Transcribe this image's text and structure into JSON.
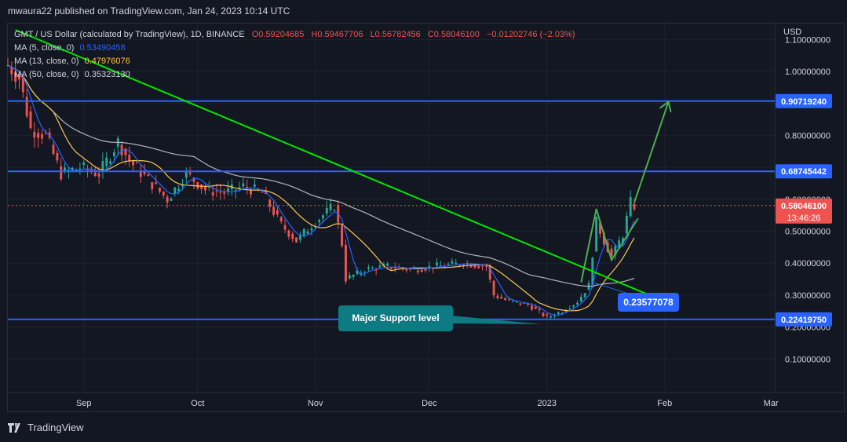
{
  "header": {
    "published_line": "mwaura22 published on TradingView.com, Jan 24, 2023 10:14 UTC"
  },
  "legend": {
    "symbol": "GMT / US Dollar (calculated by TradingView), 1D, BINANCE",
    "o": "O0.59204685",
    "h": "H0.59467706",
    "l": "L0.56782456",
    "c": "C0.58046100",
    "change": "−0.01202746 (−2.03%)",
    "ma5_label": "MA (5, close, 0)",
    "ma5_value": "0.53490458",
    "ma13_label": "MA (13, close, 0)",
    "ma13_value": "0.47976076",
    "ma50_label": "MA (50, close, 0)",
    "ma50_value": "0.35323130"
  },
  "footer": {
    "brand": "TradingView"
  },
  "colors": {
    "background": "#131722",
    "up_candle": "#26a69a",
    "down_candle": "#ef5350",
    "ma5": "#2962ff",
    "ma13": "#f9c74f",
    "ma50": "#b2b5be",
    "trendline": "#00e600",
    "projection": "#4caf50",
    "level_line": "#2962ff",
    "price_badge": "#ef5350",
    "callout": "#0e7a82"
  },
  "chart_data": {
    "type": "candlestick",
    "title": "GMT / US Dollar (calculated by TradingView), 1D, BINANCE",
    "currency_label": "USD",
    "yticks": [
      "0.10000000",
      "0.20000000",
      "0.30000000",
      "0.40000000",
      "0.50000000",
      "0.60000000",
      "0.70000000",
      "0.80000000",
      "0.90000000",
      "1.00000000",
      "1.10000000"
    ],
    "ytick_values": [
      0.1,
      0.2,
      0.3,
      0.4,
      0.5,
      0.6,
      0.7,
      0.8,
      0.9,
      1.0,
      1.1
    ],
    "ylim": [
      0.0,
      1.15
    ],
    "xticks": [
      "Sep",
      "Oct",
      "Nov",
      "Dec",
      "2023",
      "Feb",
      "Mar"
    ],
    "xtick_dates": [
      "2022-09-01",
      "2022-10-01",
      "2022-11-01",
      "2022-12-01",
      "2023-01-01",
      "2023-02-01",
      "2023-03-01"
    ],
    "xlim": [
      "2022-08-12",
      "2023-03-02"
    ],
    "last_price": 0.580461,
    "last_price_label": "0.58046100",
    "countdown": "13:46:26",
    "levels": [
      {
        "value": 0.9071924,
        "label": "0.90719240"
      },
      {
        "value": 0.68745442,
        "label": "0.68745442"
      },
      {
        "value": 0.2241975,
        "label": "0.22419750"
      }
    ],
    "annotations": [
      {
        "text": "Major Support level"
      },
      {
        "text": "0.23577078",
        "value": 0.23577078
      }
    ],
    "trendline": {
      "from": [
        "2022-08-14",
        1.13
      ],
      "to": [
        "2023-01-28",
        0.3
      ]
    },
    "ma50_line": {
      "from": [
        "2022-08-12",
        0.95
      ],
      "mid": [
        "2023-01-20",
        0.34
      ],
      "to": [
        "2023-01-24",
        0.3532313
      ]
    },
    "closes_sample": [
      [
        "2022-08-12",
        1.02
      ],
      [
        "2022-08-15",
        0.98
      ],
      [
        "2022-08-18",
        0.82
      ],
      [
        "2022-08-22",
        0.8
      ],
      [
        "2022-08-26",
        0.68
      ],
      [
        "2022-08-31",
        0.7
      ],
      [
        "2022-09-05",
        0.68
      ],
      [
        "2022-09-10",
        0.78
      ],
      [
        "2022-09-13",
        0.72
      ],
      [
        "2022-09-18",
        0.66
      ],
      [
        "2022-09-23",
        0.6
      ],
      [
        "2022-09-28",
        0.68
      ],
      [
        "2022-10-03",
        0.63
      ],
      [
        "2022-10-08",
        0.62
      ],
      [
        "2022-10-13",
        0.64
      ],
      [
        "2022-10-18",
        0.62
      ],
      [
        "2022-10-23",
        0.52
      ],
      [
        "2022-10-27",
        0.47
      ],
      [
        "2022-10-31",
        0.52
      ],
      [
        "2022-11-03",
        0.55
      ],
      [
        "2022-11-06",
        0.58
      ],
      [
        "2022-11-08",
        0.46
      ],
      [
        "2022-11-09",
        0.35
      ],
      [
        "2022-11-14",
        0.38
      ],
      [
        "2022-11-20",
        0.39
      ],
      [
        "2022-11-26",
        0.38
      ],
      [
        "2022-12-03",
        0.39
      ],
      [
        "2022-12-10",
        0.4
      ],
      [
        "2022-12-16",
        0.39
      ],
      [
        "2022-12-18",
        0.3
      ],
      [
        "2022-12-22",
        0.28
      ],
      [
        "2022-12-27",
        0.27
      ],
      [
        "2023-01-01",
        0.23
      ],
      [
        "2023-01-05",
        0.25
      ],
      [
        "2023-01-09",
        0.28
      ],
      [
        "2023-01-12",
        0.33
      ],
      [
        "2023-01-14",
        0.53
      ],
      [
        "2023-01-16",
        0.47
      ],
      [
        "2023-01-18",
        0.42
      ],
      [
        "2023-01-21",
        0.49
      ],
      [
        "2023-01-23",
        0.59
      ],
      [
        "2023-01-24",
        0.580461
      ]
    ]
  }
}
